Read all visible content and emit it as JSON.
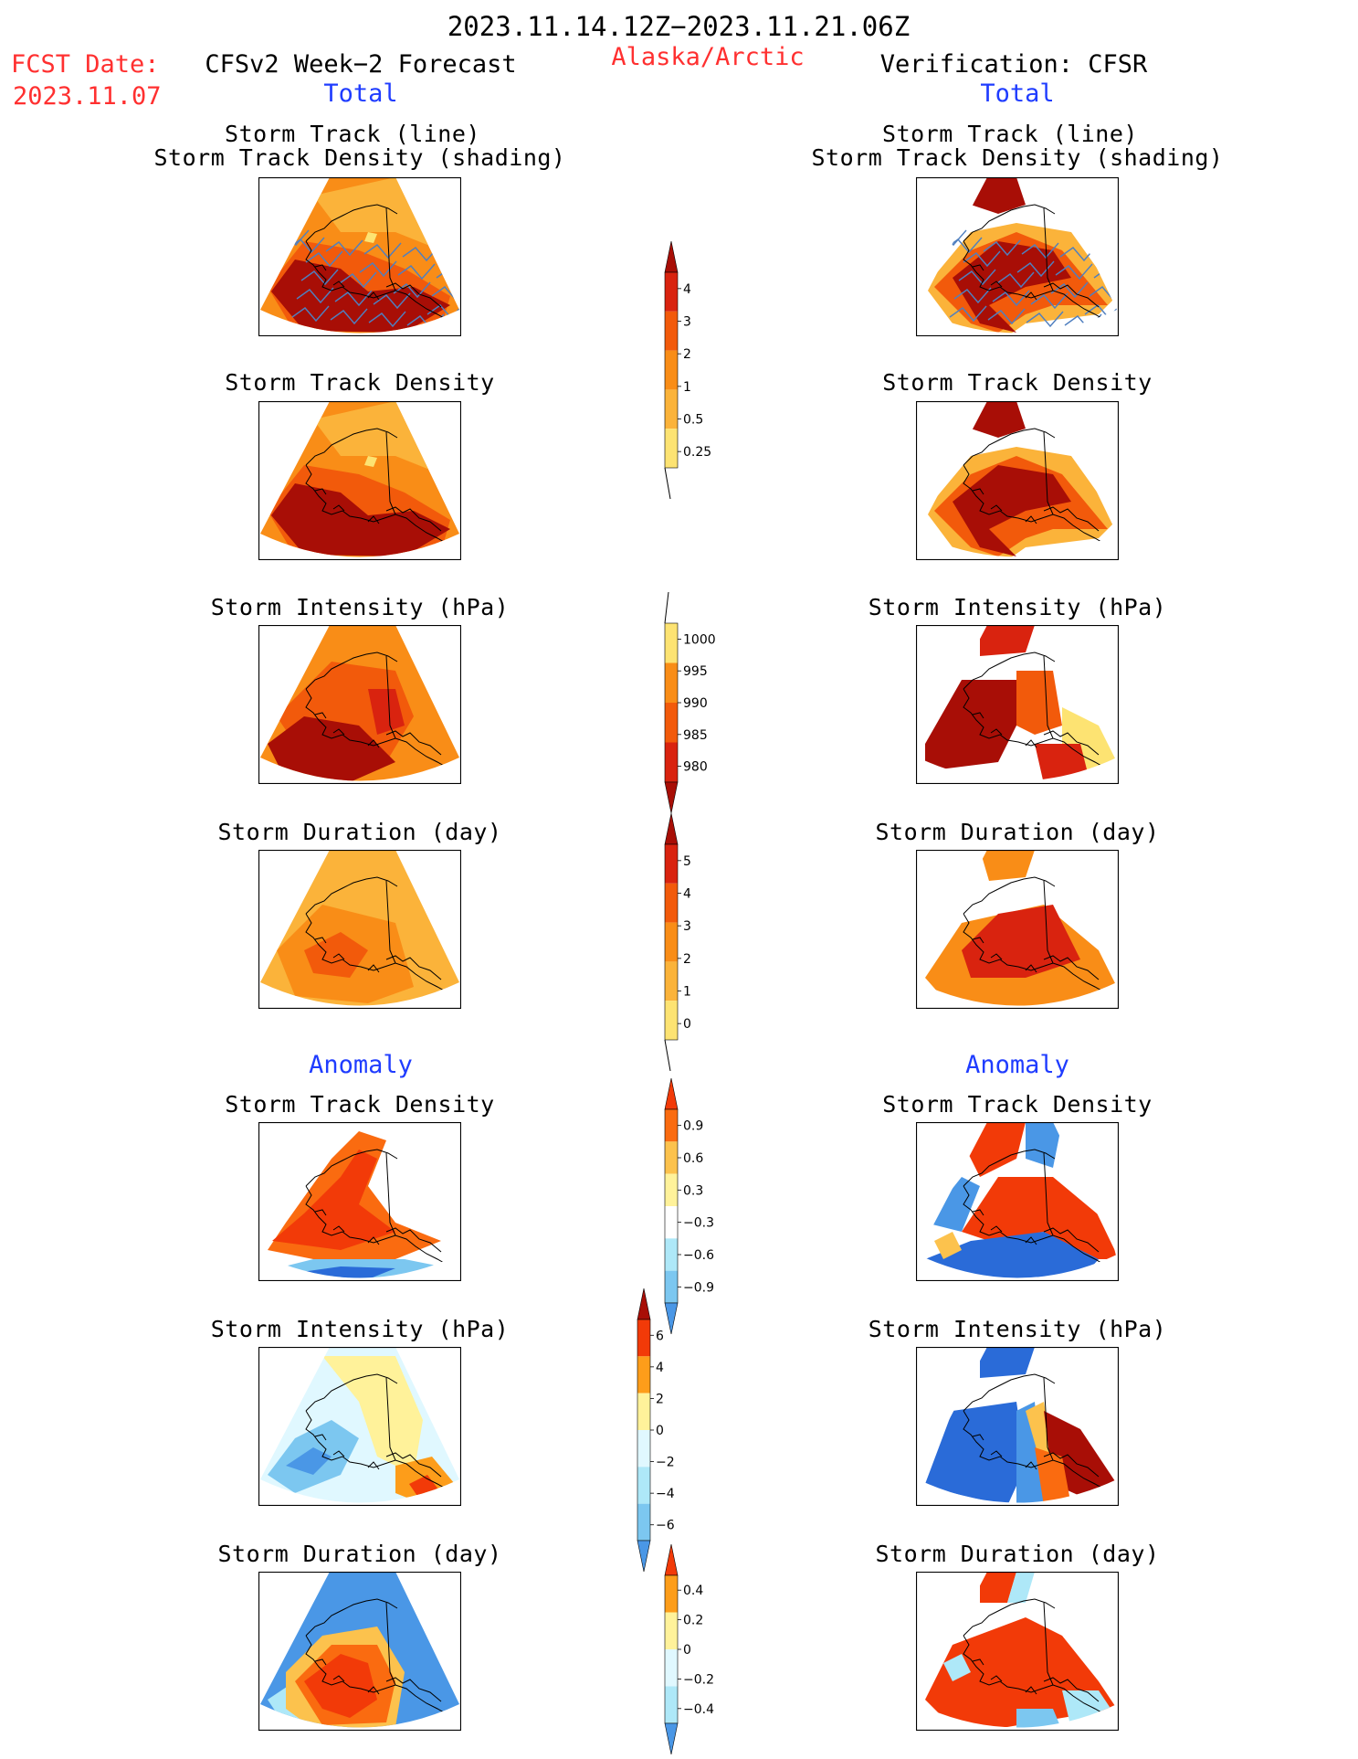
{
  "header": {
    "period": "2023.11.14.12Z−2023.11.21.06Z",
    "fcst_label": "FCST Date:",
    "fcst_date": "2023.11.07",
    "left_title": "CFSv2 Week−2 Forecast",
    "region": "Alaska/Arctic",
    "right_title": "Verification: CFSR"
  },
  "sections": {
    "total": "Total",
    "anomaly": "Anomaly"
  },
  "panels": {
    "track_line": [
      "Storm Track (line)",
      "Storm Track Density (shading)"
    ],
    "density": "Storm Track Density",
    "intensity": "Storm Intensity (hPa)",
    "duration": "Storm Duration (day)"
  },
  "colorbars": {
    "density": [
      "4",
      "3",
      "2",
      "1",
      "0.5",
      "0.25"
    ],
    "intensity": [
      "1000",
      "995",
      "990",
      "985",
      "980"
    ],
    "duration": [
      "5",
      "4",
      "3",
      "2",
      "1",
      "0"
    ],
    "anom_density": [
      "0.9",
      "0.6",
      "0.3",
      "−0.3",
      "−0.6",
      "−0.9"
    ],
    "anom_intensity": [
      "6",
      "4",
      "2",
      "0",
      "−2",
      "−4",
      "−6"
    ],
    "anom_duration": [
      "0.4",
      "0.2",
      "0",
      "−0.2",
      "−0.4"
    ]
  },
  "palette": {
    "warm": [
      "#ffffb0",
      "#fde372",
      "#fbb33a",
      "#f98d17",
      "#f25a0b",
      "#d9230f",
      "#a80e06"
    ],
    "cool": [
      "#e0f8ff",
      "#aee8f8",
      "#7cc7f0",
      "#4a97e6",
      "#2a6bd8",
      "#1a4fc4"
    ],
    "anom_warm": [
      "#fff29a",
      "#fcc24d",
      "#fd9d1a",
      "#fa6b10",
      "#f23a08",
      "#a80e06"
    ]
  }
}
